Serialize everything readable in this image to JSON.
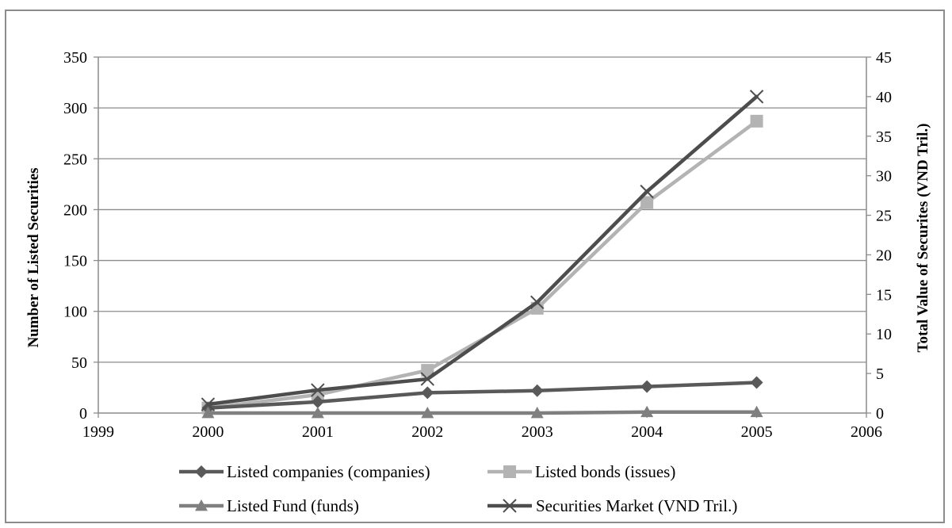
{
  "chart_data": {
    "type": "line",
    "title": "",
    "xlabel": "",
    "ylabel": "Number of Listed Securities",
    "y2label": "Total Value of Securites (VND Tril.)",
    "xlim": [
      1999,
      2006
    ],
    "ylim": [
      0,
      350
    ],
    "y2lim": [
      0,
      45
    ],
    "x_ticks": [
      1999,
      2000,
      2001,
      2002,
      2003,
      2004,
      2005,
      2006
    ],
    "y_ticks": [
      0,
      50,
      100,
      150,
      200,
      250,
      300,
      350
    ],
    "y2_ticks": [
      0,
      5,
      10,
      15,
      20,
      25,
      30,
      35,
      40,
      45
    ],
    "grid": true,
    "legend_position": "bottom",
    "series": [
      {
        "name": "Listed companies (companies)",
        "axis": "left",
        "marker": "diamond",
        "color": "#595959",
        "x": [
          2000,
          2001,
          2002,
          2003,
          2004,
          2005
        ],
        "y": [
          5,
          11,
          20,
          22,
          26,
          30
        ]
      },
      {
        "name": "Listed bonds (issues)",
        "axis": "left",
        "marker": "square",
        "color": "#b3b3b3",
        "x": [
          2000,
          2001,
          2002,
          2003,
          2004,
          2005
        ],
        "y": [
          5,
          18,
          42,
          103,
          207,
          287
        ]
      },
      {
        "name": "Listed Fund (funds)",
        "axis": "left",
        "marker": "triangle",
        "color": "#7f7f7f",
        "x": [
          2000,
          2001,
          2002,
          2003,
          2004,
          2005
        ],
        "y": [
          0,
          0,
          0,
          0,
          1,
          1
        ]
      },
      {
        "name": "Securities Market (VND Tril.)",
        "axis": "right",
        "marker": "x",
        "color": "#4d4d4d",
        "x": [
          2000,
          2001,
          2002,
          2003,
          2004,
          2005
        ],
        "y": [
          1.1,
          2.9,
          4.3,
          14,
          28,
          40
        ]
      }
    ]
  }
}
